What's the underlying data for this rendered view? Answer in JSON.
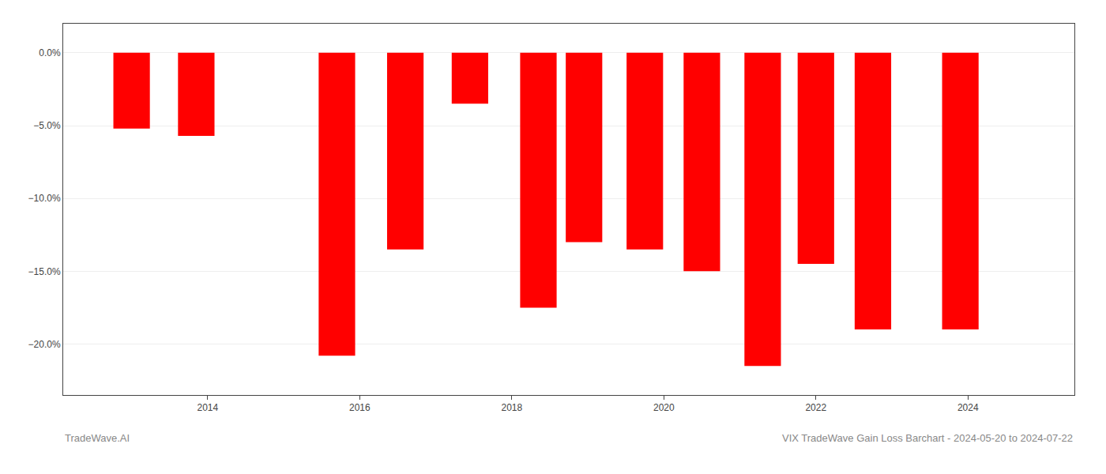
{
  "chart_data": {
    "type": "bar",
    "title": "VIX TradeWave Gain Loss Barchart - 2024-05-20 to 2024-07-22",
    "annotations": [
      "TradeWave.AI"
    ],
    "x": [
      2013.0,
      2013.85,
      2015.7,
      2016.6,
      2017.45,
      2018.35,
      2018.95,
      2019.75,
      2020.5,
      2021.3,
      2022.0,
      2022.75,
      2023.9
    ],
    "values": [
      -5.2,
      -5.7,
      -20.8,
      -13.5,
      -3.5,
      -17.5,
      -13.0,
      -13.5,
      -15.0,
      -21.5,
      -14.5,
      -19.0,
      -19.0
    ],
    "color": "#ff0000",
    "xlim": [
      2012.1,
      2025.4
    ],
    "xticks": [
      2014,
      2016,
      2018,
      2020,
      2022,
      2024
    ],
    "ylim": [
      -23.5,
      2.0
    ],
    "yticks": [
      {
        "value": 0.0,
        "label": "0.0%"
      },
      {
        "value": -5.0,
        "label": "−5.0%"
      },
      {
        "value": -10.0,
        "label": "−10.0%"
      },
      {
        "value": -15.0,
        "label": "−15.0%"
      },
      {
        "value": -20.0,
        "label": "−20.0%"
      }
    ],
    "grid": true
  }
}
